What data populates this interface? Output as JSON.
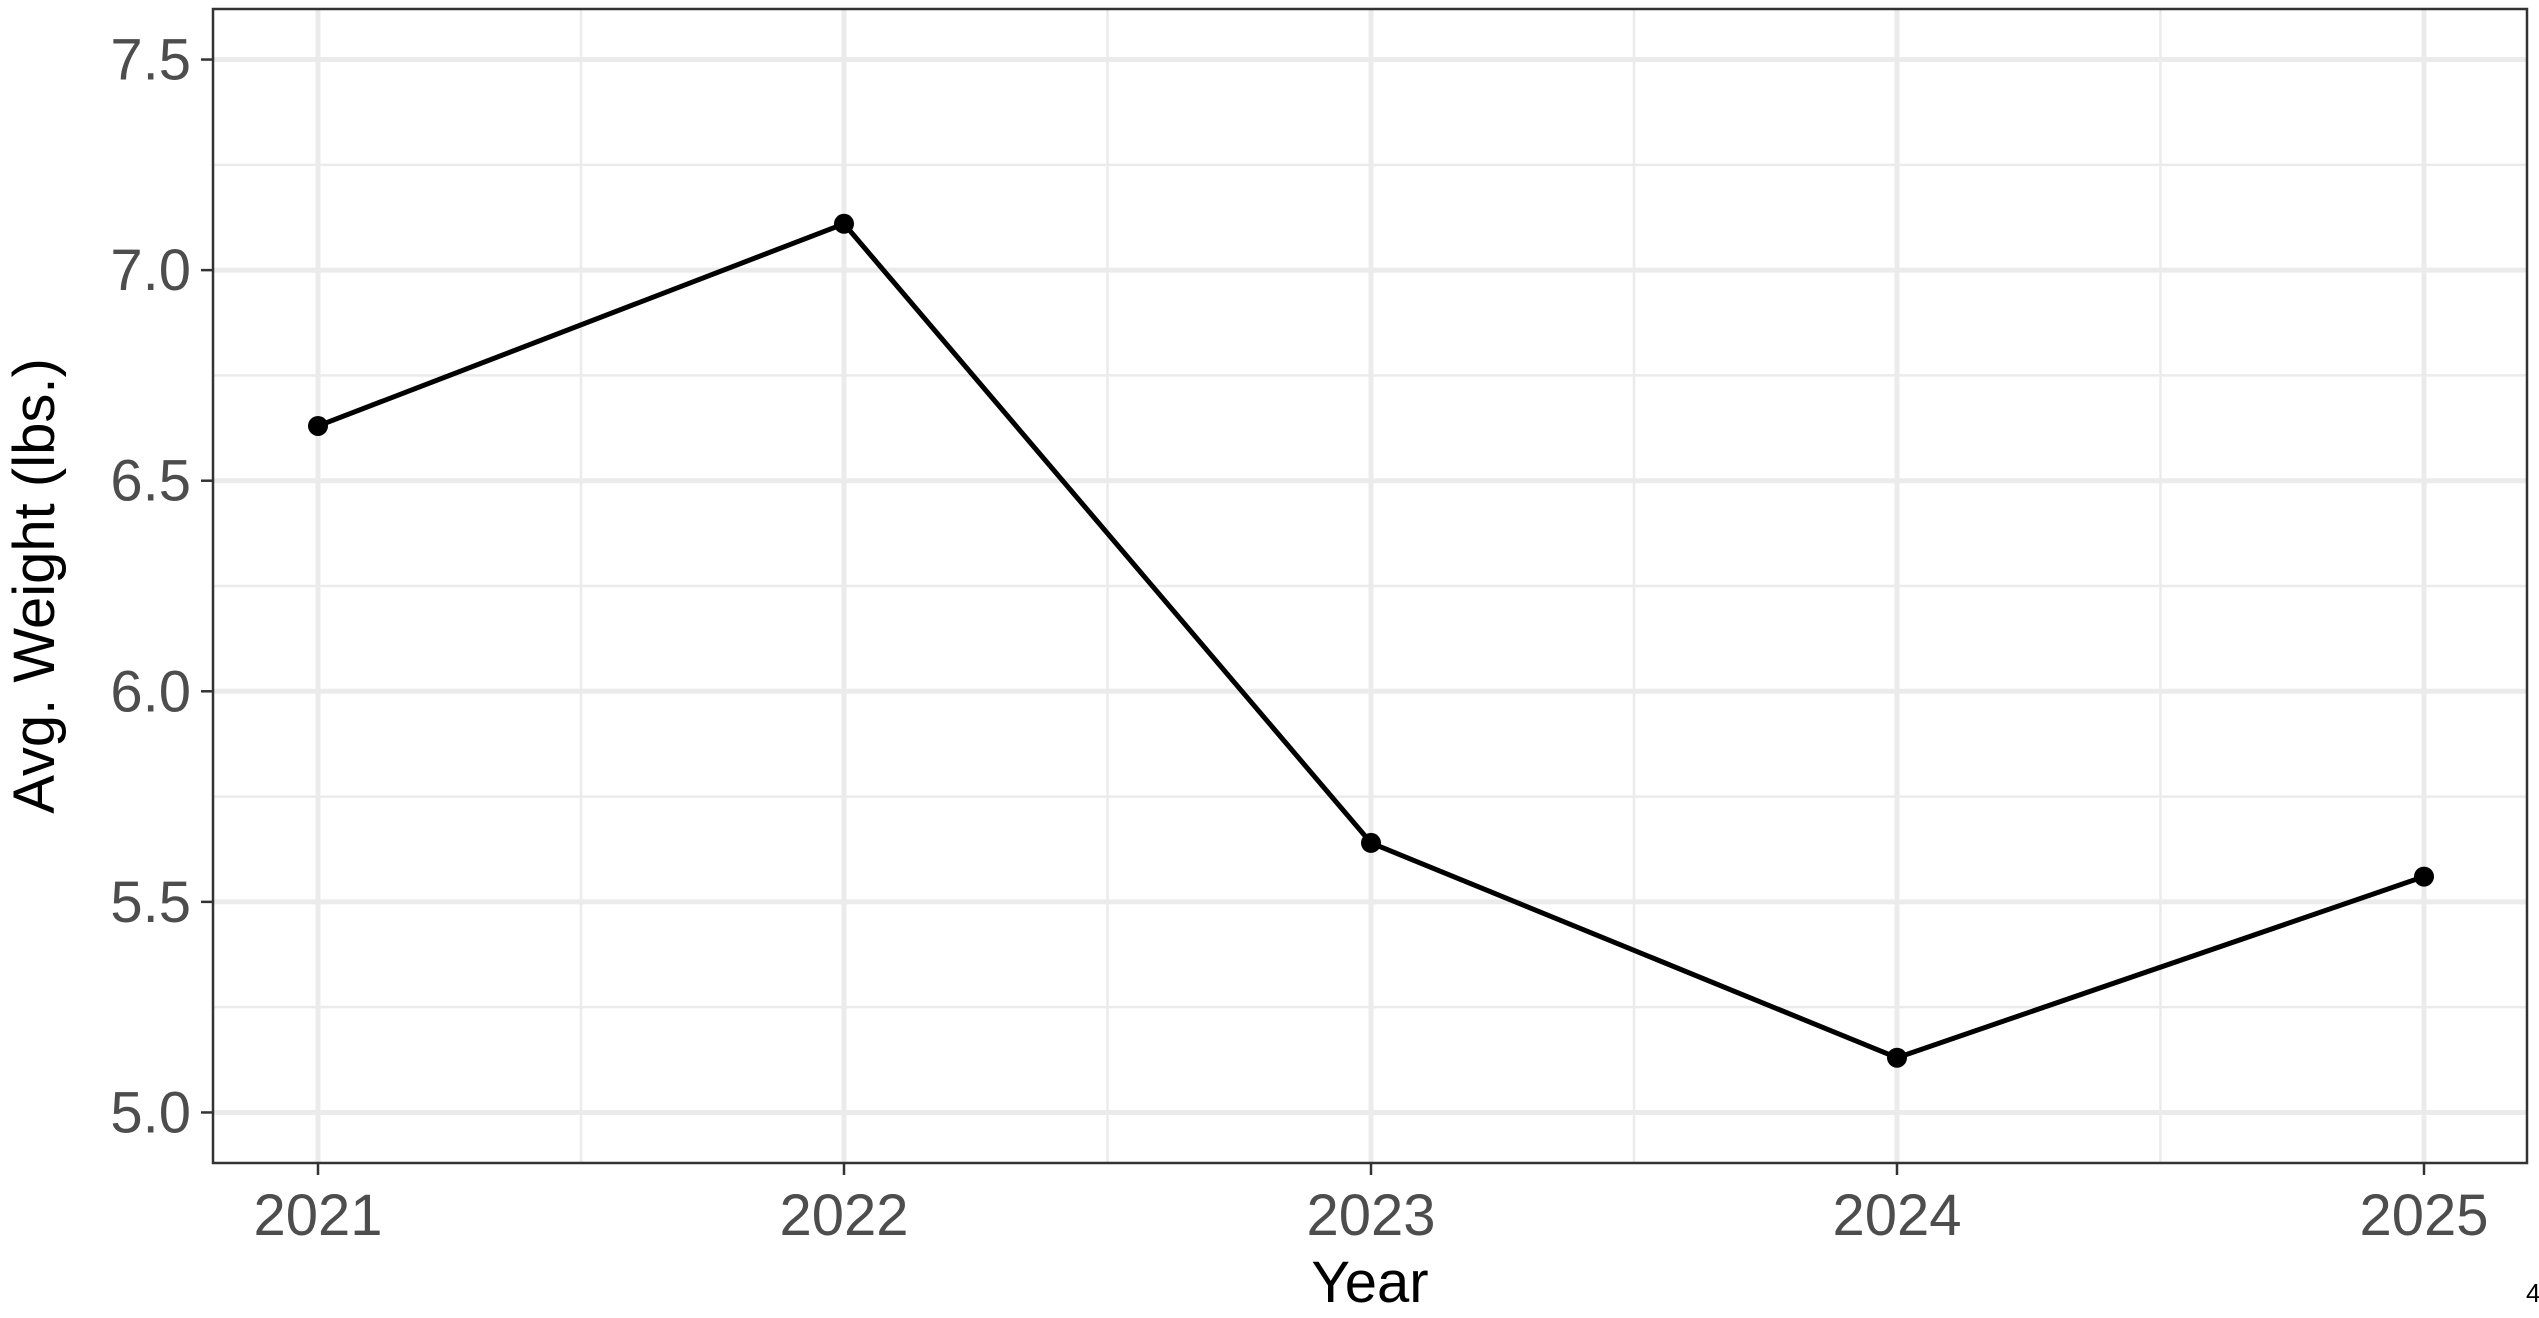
{
  "chart_data": {
    "type": "line",
    "xlabel": "Year",
    "ylabel": "Avg. Weight (lbs.)",
    "x": [
      "2021",
      "2022",
      "2023",
      "2024",
      "2025"
    ],
    "series": [
      {
        "values": [
          6.63,
          7.11,
          5.64,
          5.13,
          5.56
        ]
      }
    ],
    "ylim": [
      4.88,
      7.62
    ],
    "yticks": [
      "5.0",
      "5.5",
      "6.0",
      "6.5",
      "7.0",
      "7.5"
    ],
    "grid": true,
    "legend": "none",
    "line_color": "#000000",
    "grid_color": "#ebebeb",
    "corner_note": "4"
  }
}
